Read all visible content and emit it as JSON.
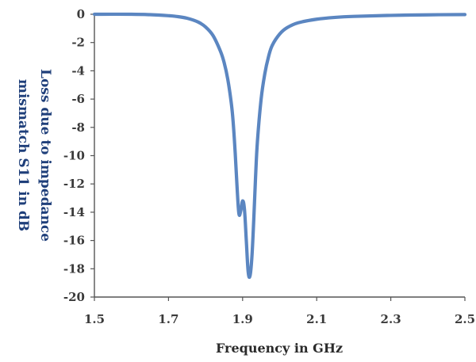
{
  "chart_data": {
    "type": "line",
    "title": "",
    "xlabel": "Frequency in GHz",
    "ylabel_lines": [
      "Loss due to impedance",
      "mismatch S11 in dB"
    ],
    "xlim": [
      1.5,
      2.5
    ],
    "ylim": [
      -20,
      0
    ],
    "x_ticks": [
      1.5,
      1.7,
      1.9,
      2.1,
      2.3,
      2.5
    ],
    "x_tick_labels": [
      "1.5",
      "1.7",
      "1.9",
      "2.1",
      "2.3",
      "2.5"
    ],
    "y_ticks": [
      0,
      -2,
      -4,
      -6,
      -8,
      -10,
      -12,
      -14,
      -16,
      -18,
      -20
    ],
    "y_tick_labels": [
      "0",
      "-2",
      "-4",
      "-6",
      "-8",
      "-10",
      "-12",
      "-14",
      "-16",
      "-18",
      "-20"
    ],
    "grid": false,
    "legend": "none",
    "series": [
      {
        "color": "#5b86c1",
        "x": [
          1.5,
          1.6,
          1.65,
          1.7,
          1.72,
          1.75,
          1.78,
          1.8,
          1.82,
          1.84,
          1.85,
          1.86,
          1.87,
          1.875,
          1.88,
          1.885,
          1.89,
          1.895,
          1.9,
          1.905,
          1.91,
          1.915,
          1.92,
          1.925,
          1.93,
          1.935,
          1.94,
          1.95,
          1.96,
          1.97,
          1.98,
          2.0,
          2.02,
          2.05,
          2.1,
          2.15,
          2.2,
          2.3,
          2.4,
          2.5
        ],
        "y": [
          0.0,
          0.0,
          -0.03,
          -0.1,
          -0.15,
          -0.28,
          -0.55,
          -0.9,
          -1.5,
          -2.6,
          -3.4,
          -4.6,
          -6.4,
          -7.8,
          -9.8,
          -12.2,
          -14.1,
          -13.9,
          -13.2,
          -13.8,
          -16.0,
          -18.2,
          -18.5,
          -17.2,
          -14.6,
          -11.5,
          -9.0,
          -6.0,
          -4.2,
          -3.0,
          -2.2,
          -1.4,
          -0.95,
          -0.6,
          -0.35,
          -0.22,
          -0.15,
          -0.08,
          -0.04,
          -0.02
        ]
      }
    ]
  }
}
